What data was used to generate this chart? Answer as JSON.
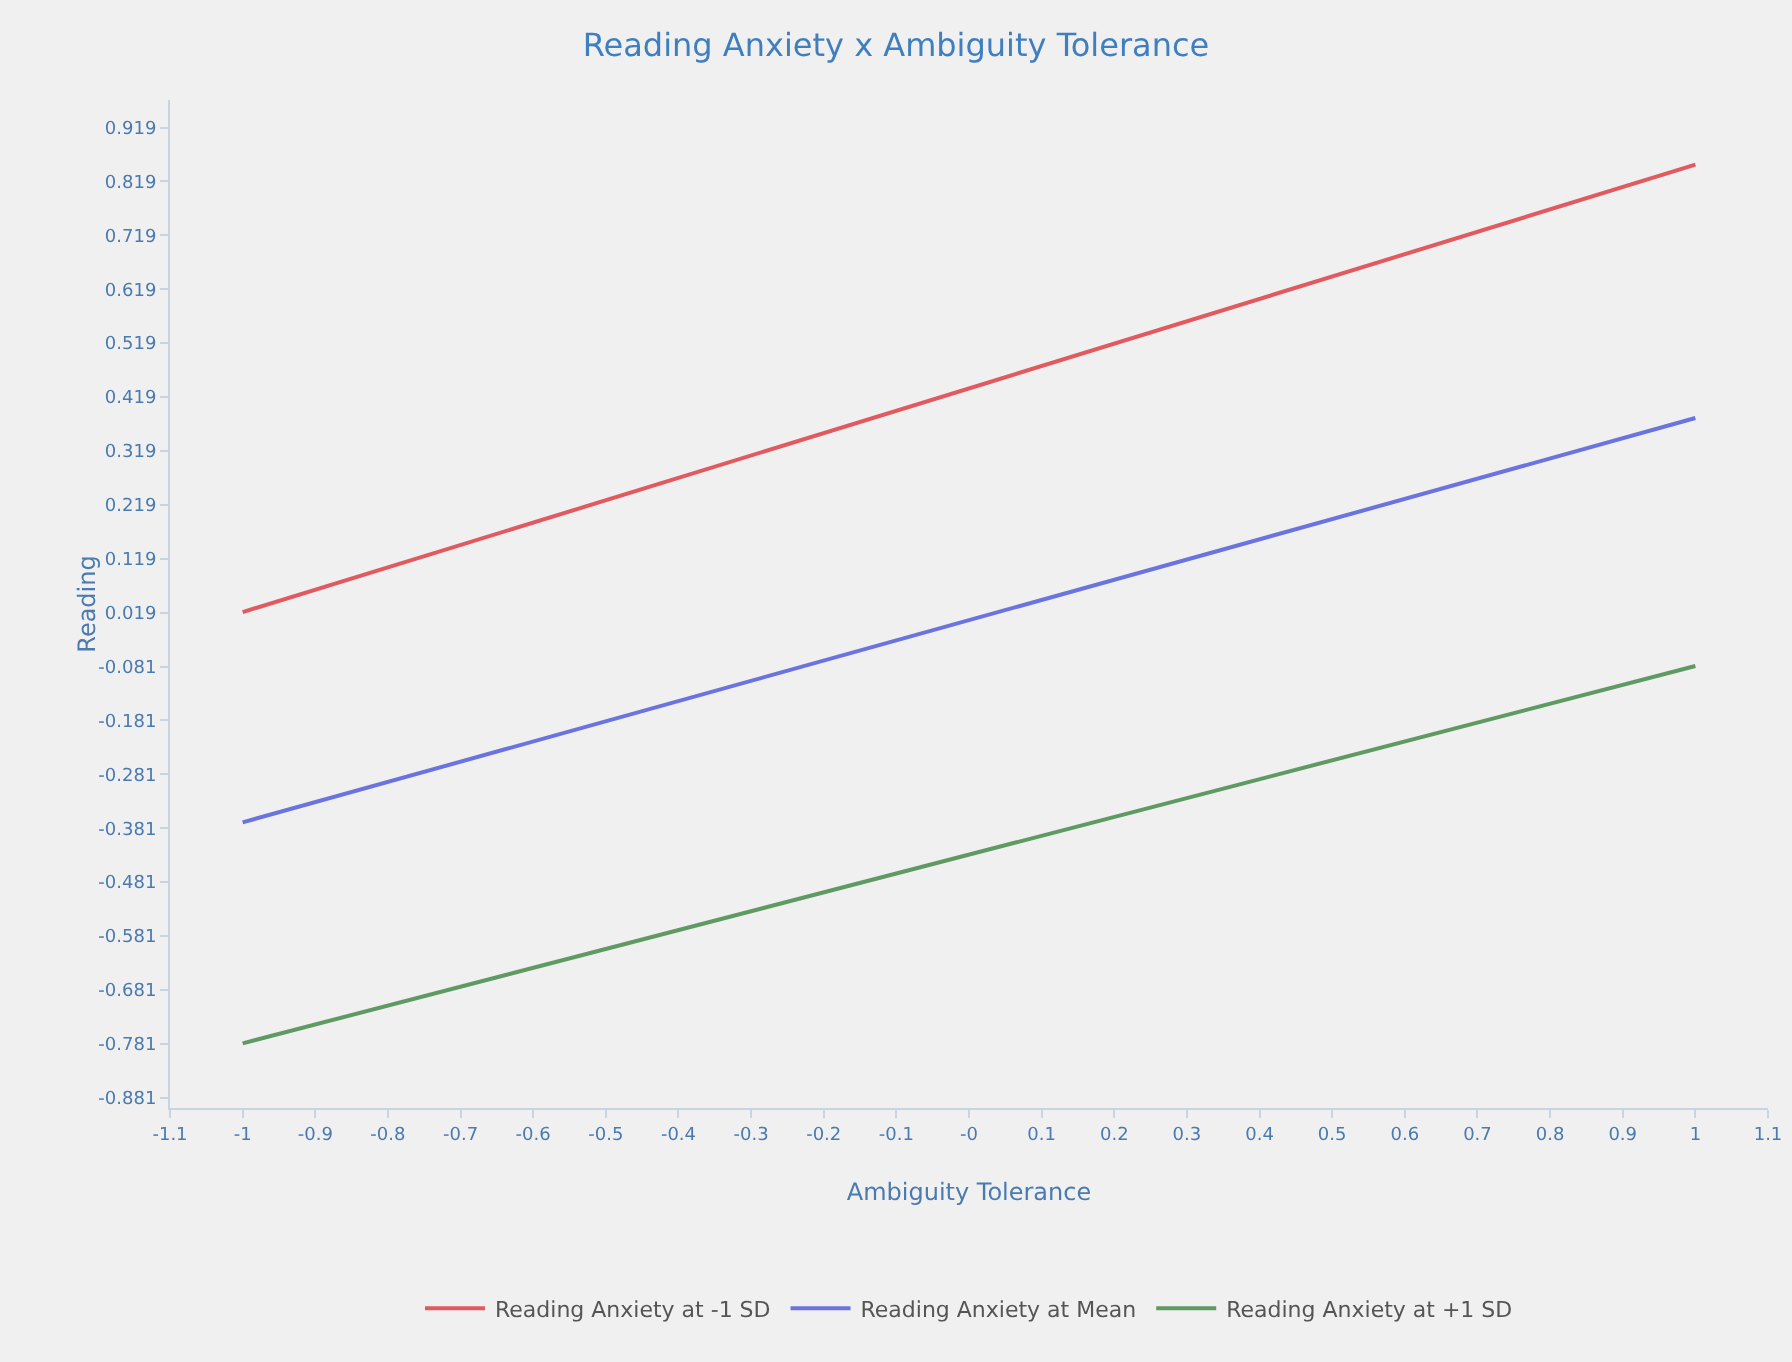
{
  "chart_data": {
    "type": "line",
    "title": "Reading Anxiety x Ambiguity Tolerance",
    "xlabel": "Ambiguity Tolerance",
    "ylabel": "Reading",
    "x": [
      -1,
      1
    ],
    "series": [
      {
        "name": "Reading Anxiety at -1 SD",
        "color": "#e05a5f",
        "values": [
          0.02,
          0.85
        ]
      },
      {
        "name": "Reading Anxiety at Mean",
        "color": "#6b74de",
        "values": [
          -0.37,
          0.38
        ]
      },
      {
        "name": "Reading Anxiety at +1 SD",
        "color": "#5f9a62",
        "values": [
          -0.78,
          -0.08
        ]
      }
    ],
    "xlim": [
      -1.1,
      1.1
    ],
    "xticks": [
      -1.1,
      -1,
      -0.9,
      -0.8,
      -0.7,
      -0.6,
      -0.5,
      -0.4,
      -0.3,
      -0.2,
      -0.1,
      {
        "value": 0,
        "label": "-0"
      },
      0.1,
      0.2,
      0.3,
      0.4,
      0.5,
      0.6,
      0.7,
      0.8,
      0.9,
      1,
      1.1
    ],
    "ylim": [
      -0.9,
      0.97
    ],
    "yticks": [
      -0.881,
      -0.781,
      -0.681,
      -0.581,
      -0.481,
      -0.381,
      -0.281,
      -0.181,
      -0.081,
      0.019,
      0.119,
      0.219,
      0.319,
      0.419,
      0.519,
      0.619,
      0.719,
      0.819,
      0.919
    ],
    "grid": false,
    "legend": "bottom",
    "marker": "none",
    "line_style": "solid"
  }
}
